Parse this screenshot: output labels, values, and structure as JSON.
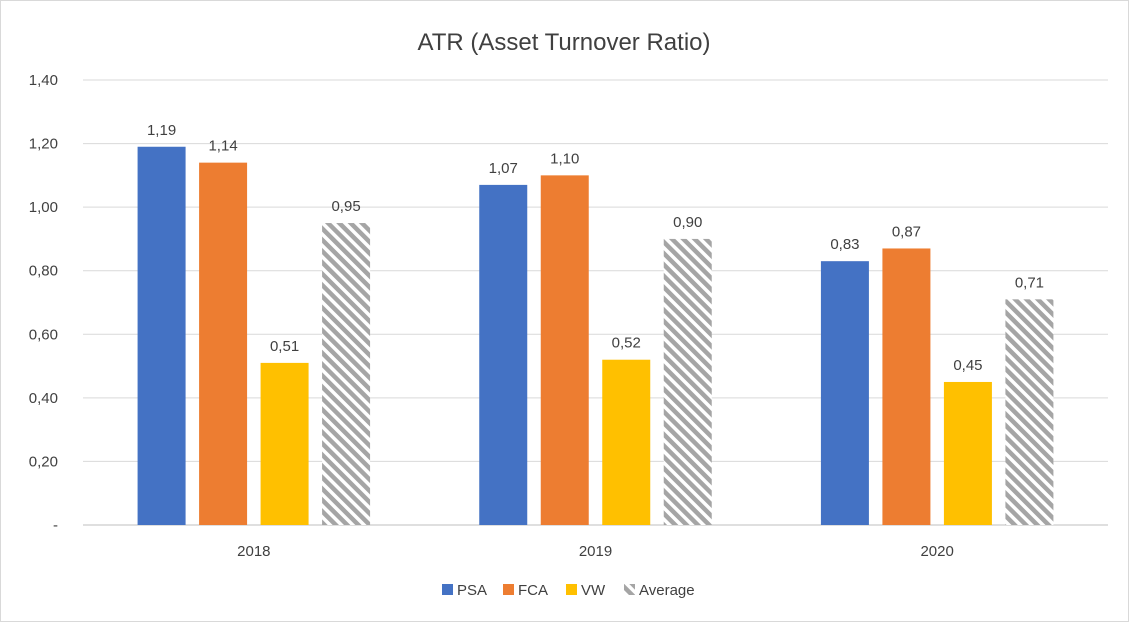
{
  "chart_data": {
    "type": "bar",
    "title": "ATR (Asset Turnover Ratio)",
    "categories": [
      "2018",
      "2019",
      "2020"
    ],
    "series": [
      {
        "name": "PSA",
        "values": [
          1.19,
          1.07,
          0.83
        ],
        "labels": [
          "1,19",
          "1,07",
          "0,83"
        ],
        "color": "#4472c4",
        "pattern": "solid"
      },
      {
        "name": "FCA",
        "values": [
          1.14,
          1.1,
          0.87
        ],
        "labels": [
          "1,14",
          "1,10",
          "0,87"
        ],
        "color": "#ed7d31",
        "pattern": "solid"
      },
      {
        "name": "VW",
        "values": [
          0.51,
          0.52,
          0.45
        ],
        "labels": [
          "0,51",
          "0,52",
          "0,45"
        ],
        "color": "#ffc000",
        "pattern": "solid"
      },
      {
        "name": "Average",
        "values": [
          0.95,
          0.9,
          0.71
        ],
        "labels": [
          "0,95",
          "0,90",
          "0,71"
        ],
        "color": "#a5a5a5",
        "pattern": "diagonal-hatch"
      }
    ],
    "ylim": [
      0,
      1.4
    ],
    "yticks": [
      0,
      0.2,
      0.4,
      0.6,
      0.8,
      1.0,
      1.2,
      1.4
    ],
    "ytick_labels": [
      "-",
      "0,20",
      "0,40",
      "0,60",
      "0,80",
      "1,00",
      "1,20",
      "1,40"
    ],
    "grid": true,
    "legend_position": "bottom"
  }
}
